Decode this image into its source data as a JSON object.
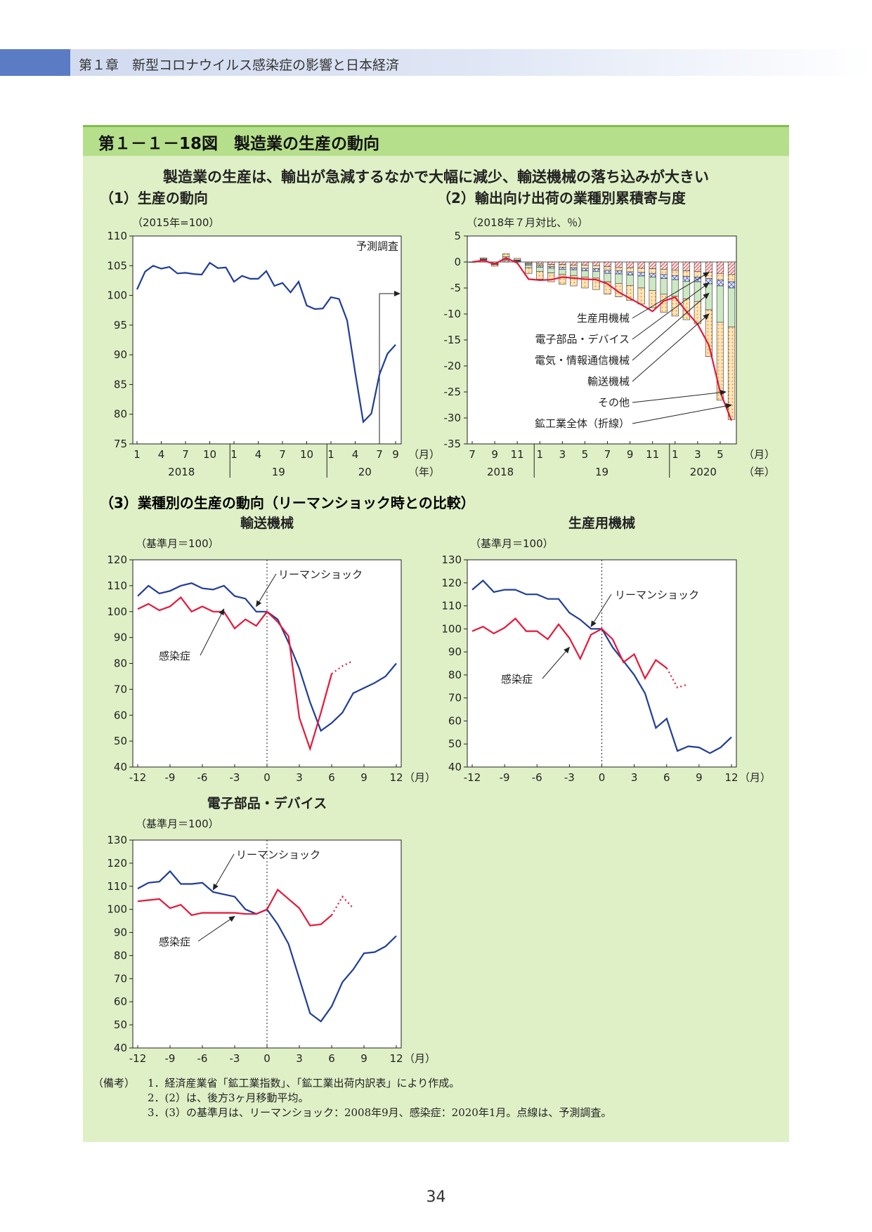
{
  "header": {
    "chapter": "第１章　新型コロナウイルス感染症の影響と日本経済"
  },
  "figure": {
    "title": "第１－１－18図　製造業の生産の動向",
    "headline": "製造業の生産は、輸出が急減するなかで大幅に減少、輸送機械の落ち込みが大きい"
  },
  "page_number": "34",
  "notes": {
    "label": "（備考）",
    "lines": [
      "1．経済産業省「鉱工業指数」、「鉱工業出荷内訳表」により作成。",
      "2．(2）は、後方3ヶ月移動平均。",
      "3．(3）の基準月は、リーマンショック：2008年9月、感染症：2020年1月。点線は、予測調査。"
    ]
  },
  "colors": {
    "blue": "#1f3d9a",
    "red": "#e6173a",
    "panel_bg": "#dff0c6",
    "title_band": "#b6df8c"
  },
  "chart_data": [
    {
      "id": "c1",
      "type": "line",
      "title": "（1）生産の動向",
      "unit_label": "（2015年=100）",
      "ylim": [
        75,
        110
      ],
      "yticks": [
        75,
        80,
        85,
        90,
        95,
        100,
        105,
        110
      ],
      "xtick_labels": [
        "1",
        "4",
        "7",
        "10",
        "1",
        "4",
        "7",
        "10",
        "1",
        "4",
        "7",
        "9"
      ],
      "xtick_index": [
        0,
        3,
        6,
        9,
        12,
        15,
        18,
        21,
        24,
        27,
        30,
        32
      ],
      "year_labels": [
        "2018",
        "19",
        "20"
      ],
      "x_unit": "（月）",
      "year_unit": "（年）",
      "annotation": "予測調査",
      "forecast_from_index": 30,
      "series": [
        {
          "values": [
            101.0,
            104.0,
            105.0,
            104.5,
            104.8,
            103.7,
            103.8,
            103.6,
            103.5,
            105.5,
            104.6,
            104.7,
            102.3,
            103.3,
            102.8,
            102.8,
            104.1,
            101.6,
            102.1,
            100.5,
            102.3,
            98.3,
            97.7,
            97.8,
            99.7,
            99.4,
            95.8,
            87.0,
            78.7,
            80.1,
            86.7,
            90.2,
            91.7
          ]
        }
      ]
    },
    {
      "id": "c2",
      "type": "bar",
      "title": "（2）輸出向け出荷の業種別累積寄与度",
      "unit_label": "（2018年７月対比、％）",
      "ylim": [
        -35,
        5
      ],
      "yticks": [
        5,
        0,
        -5,
        -10,
        -15,
        -20,
        -25,
        -30,
        -35
      ],
      "xtick_labels": [
        "7",
        "9",
        "11",
        "1",
        "3",
        "5",
        "7",
        "9",
        "11",
        "1",
        "3",
        "5"
      ],
      "xtick_index": [
        0,
        2,
        4,
        6,
        8,
        10,
        12,
        14,
        16,
        18,
        20,
        22
      ],
      "year_labels": [
        "2018",
        "19",
        "2020"
      ],
      "x_unit": "（月）",
      "year_unit": "（年）",
      "legend": [
        "生産用機械",
        "電子部品・デバイス",
        "電気・情報通信機械",
        "輸送機械",
        "その他",
        "鉱工業全体（折線）"
      ],
      "series": [
        {
          "name": "生産用機械",
          "values": [
            0,
            0.2,
            -0.2,
            0.3,
            0.1,
            -0.2,
            -0.4,
            -0.5,
            -0.5,
            -0.6,
            -0.6,
            -0.7,
            -0.9,
            -1.0,
            -1.1,
            -1.2,
            -1.3,
            -1.4,
            -1.6,
            -1.7,
            -1.8,
            -2.0,
            -2.2,
            -2.4
          ]
        },
        {
          "name": "電子部品・デバイス",
          "values": [
            0,
            0.2,
            -0.1,
            0.2,
            0.1,
            -0.2,
            -0.3,
            -0.4,
            -0.5,
            -0.5,
            -0.6,
            -0.6,
            -0.7,
            -0.7,
            -0.8,
            -0.8,
            -0.9,
            -1.0,
            -1.0,
            -1.1,
            -1.1,
            -1.2,
            -1.3,
            -1.4
          ]
        },
        {
          "name": "電気・情報通信機械",
          "values": [
            0,
            0.1,
            -0.1,
            0.1,
            0.1,
            -0.2,
            -0.3,
            -0.3,
            -0.4,
            -0.4,
            -0.5,
            -0.5,
            -0.6,
            -0.6,
            -0.6,
            -0.7,
            -0.7,
            -0.8,
            -0.8,
            -0.9,
            -0.9,
            -1.0,
            -1.1,
            -1.2
          ]
        },
        {
          "name": "輸送機械",
          "values": [
            0,
            0.1,
            -0.1,
            0.4,
            0.1,
            -0.5,
            -0.8,
            -0.9,
            -1.0,
            -1.1,
            -1.2,
            -1.3,
            -1.6,
            -1.8,
            -2.0,
            -2.3,
            -2.6,
            -3.0,
            -3.2,
            -3.4,
            -3.8,
            -5.0,
            -7.0,
            -7.5
          ]
        },
        {
          "name": "その他",
          "values": [
            0,
            0.2,
            -0.3,
            0.6,
            0.3,
            -1.1,
            -1.5,
            -1.7,
            -1.9,
            -2.0,
            -2.1,
            -2.2,
            -2.4,
            -2.6,
            -2.9,
            -3.1,
            -3.3,
            -3.5,
            -3.8,
            -4.0,
            -4.3,
            -9.0,
            -15.0,
            -17.8
          ]
        },
        {
          "name": "鉱工業全体（折線）",
          "values": [
            0,
            0.3,
            -0.4,
            0.8,
            -0.2,
            -3.3,
            -3.5,
            -3.4,
            -2.9,
            -3.1,
            -3.3,
            -3.4,
            -4.2,
            -5.8,
            -7.0,
            -8.2,
            -9.5,
            -7.5,
            -6.8,
            -9.5,
            -12.0,
            -16.0,
            -25.0,
            -30.5
          ]
        }
      ]
    },
    {
      "id": "c3",
      "type": "line",
      "section_title": "（3）業種別の生産の動向（リーマンショック時との比較）",
      "title": "輸送機械",
      "unit_label": "（基準月＝100）",
      "ylim": [
        40,
        120
      ],
      "yticks": [
        40,
        50,
        60,
        70,
        80,
        90,
        100,
        110,
        120
      ],
      "xlim": [
        -12,
        12
      ],
      "xticks": [
        -12,
        -9,
        -6,
        -3,
        0,
        3,
        6,
        9,
        12
      ],
      "x_unit": "（月）",
      "annotations": [
        "リーマンショック",
        "感染症"
      ],
      "series": [
        {
          "name": "リーマンショック",
          "x": [
            -12,
            -11,
            -10,
            -9,
            -8,
            -7,
            -6,
            -5,
            -4,
            -3,
            -2,
            -1,
            0,
            1,
            2,
            3,
            4,
            5,
            6,
            7,
            8,
            9,
            10,
            11,
            12
          ],
          "values": [
            106.0,
            110.0,
            107.0,
            108.0,
            110.0,
            111.0,
            109.0,
            108.5,
            110.0,
            106.0,
            105.0,
            100.0,
            100.0,
            97.0,
            88.0,
            78.0,
            65.0,
            54.0,
            57.0,
            61.0,
            68.5,
            70.5,
            72.5,
            75.0,
            80.0
          ]
        },
        {
          "name": "感染症",
          "x": [
            -12,
            -11,
            -10,
            -9,
            -8,
            -7,
            -6,
            -5,
            -4,
            -3,
            -2,
            -1,
            0,
            1,
            2,
            3,
            4,
            5,
            6
          ],
          "values": [
            101.0,
            103.0,
            100.5,
            102.0,
            105.5,
            100.0,
            102.0,
            100.0,
            100.0,
            93.5,
            97.0,
            94.5,
            100.0,
            96.0,
            90.5,
            59.0,
            47.0,
            61.0,
            76.0
          ]
        },
        {
          "name": "感染症（予測調査）",
          "x": [
            6,
            7,
            8
          ],
          "values": [
            76.0,
            79.0,
            81.0
          ]
        }
      ]
    },
    {
      "id": "c4",
      "type": "line",
      "title": "生産用機械",
      "unit_label": "（基準月＝100）",
      "ylim": [
        40,
        130
      ],
      "yticks": [
        40,
        50,
        60,
        70,
        80,
        90,
        100,
        110,
        120,
        130
      ],
      "xlim": [
        -12,
        12
      ],
      "xticks": [
        -12,
        -9,
        -6,
        -3,
        0,
        3,
        6,
        9,
        12
      ],
      "x_unit": "（月）",
      "annotations": [
        "リーマンショック",
        "感染症"
      ],
      "series": [
        {
          "name": "リーマンショック",
          "x": [
            -12,
            -11,
            -10,
            -9,
            -8,
            -7,
            -6,
            -5,
            -4,
            -3,
            -2,
            -1,
            0,
            1,
            2,
            3,
            4,
            5,
            6,
            7,
            8,
            9,
            10,
            11,
            12
          ],
          "values": [
            117.0,
            121.0,
            116.0,
            117.0,
            117.0,
            115.0,
            115.0,
            113.0,
            113.0,
            107.0,
            104.0,
            100.0,
            100.0,
            92.0,
            86.0,
            80.0,
            72.0,
            57.0,
            61.0,
            47.0,
            49.0,
            48.5,
            46.0,
            48.5,
            53.0
          ]
        },
        {
          "name": "感染症",
          "x": [
            -12,
            -11,
            -10,
            -9,
            -8,
            -7,
            -6,
            -5,
            -4,
            -3,
            -2,
            -1,
            0,
            1,
            2,
            3,
            4,
            5,
            6
          ],
          "values": [
            99.0,
            101.0,
            98.0,
            100.5,
            104.5,
            99.0,
            99.0,
            95.5,
            102.0,
            96.0,
            87.0,
            97.5,
            100.0,
            95.5,
            85.5,
            89.0,
            78.5,
            86.5,
            83.0
          ]
        },
        {
          "name": "感染症（予測調査）",
          "x": [
            6,
            7,
            8
          ],
          "values": [
            83.0,
            74.5,
            76.0
          ]
        }
      ]
    },
    {
      "id": "c5",
      "type": "line",
      "title": "電子部品・デバイス",
      "unit_label": "（基準月＝100）",
      "ylim": [
        40,
        130
      ],
      "yticks": [
        40,
        50,
        60,
        70,
        80,
        90,
        100,
        110,
        120,
        130
      ],
      "xlim": [
        -12,
        12
      ],
      "xticks": [
        -12,
        -9,
        -6,
        -3,
        0,
        3,
        6,
        9,
        12
      ],
      "x_unit": "（月）",
      "annotations": [
        "リーマンショック",
        "感染症"
      ],
      "series": [
        {
          "name": "リーマンショック",
          "x": [
            -12,
            -11,
            -10,
            -9,
            -8,
            -7,
            -6,
            -5,
            -4,
            -3,
            -2,
            -1,
            0,
            1,
            2,
            3,
            4,
            5,
            6,
            7,
            8,
            9,
            10,
            11,
            12
          ],
          "values": [
            109.0,
            111.5,
            112.0,
            116.5,
            111.0,
            111.0,
            111.5,
            107.5,
            106.5,
            105.5,
            100.0,
            98.0,
            100.0,
            93.5,
            85.0,
            70.0,
            55.0,
            51.5,
            58.0,
            68.5,
            74.0,
            81.0,
            81.5,
            84.0,
            88.5
          ]
        },
        {
          "name": "感染症",
          "x": [
            -12,
            -11,
            -10,
            -9,
            -8,
            -7,
            -6,
            -5,
            -4,
            -3,
            -2,
            -1,
            0,
            1,
            2,
            3,
            4,
            5,
            6
          ],
          "values": [
            103.5,
            104.0,
            104.5,
            100.5,
            102.0,
            97.5,
            98.5,
            98.5,
            98.5,
            98.5,
            98.0,
            98.0,
            100.0,
            108.5,
            104.5,
            100.5,
            93.0,
            93.5,
            97.5
          ]
        },
        {
          "name": "感染症（予測調査）",
          "x": [
            6,
            7,
            8
          ],
          "values": [
            97.5,
            105.5,
            100.5
          ]
        }
      ]
    }
  ]
}
